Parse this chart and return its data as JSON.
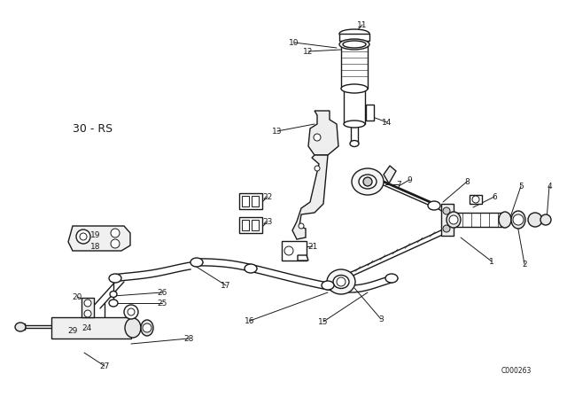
{
  "bg_color": "#ffffff",
  "line_color": "#1a1a1a",
  "ref_label": "30 - RS",
  "catalog": "C000263",
  "figsize": [
    6.4,
    4.48
  ],
  "dpi": 100
}
